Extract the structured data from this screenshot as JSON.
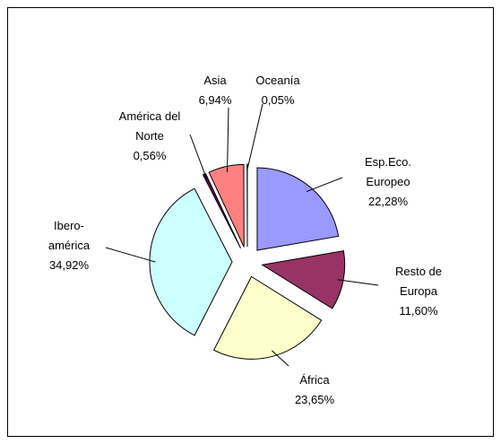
{
  "chart_data": {
    "type": "pie",
    "categories": [
      "Esp.Eco. Europeo",
      "Resto de Europa",
      "África",
      "Ibero-américa",
      "América del Norte",
      "Asia",
      "Oceanía"
    ],
    "values": [
      22.28,
      11.6,
      23.65,
      34.92,
      0.56,
      6.94,
      0.05
    ],
    "value_labels": [
      "22,28%",
      "11,60%",
      "23,65%",
      "34,92%",
      "0,56%",
      "6,94%",
      "0,05%"
    ],
    "colors": [
      "#9999ff",
      "#993366",
      "#ffffcc",
      "#ccffff",
      "#660066",
      "#ff8080",
      "#0066cc"
    ]
  }
}
